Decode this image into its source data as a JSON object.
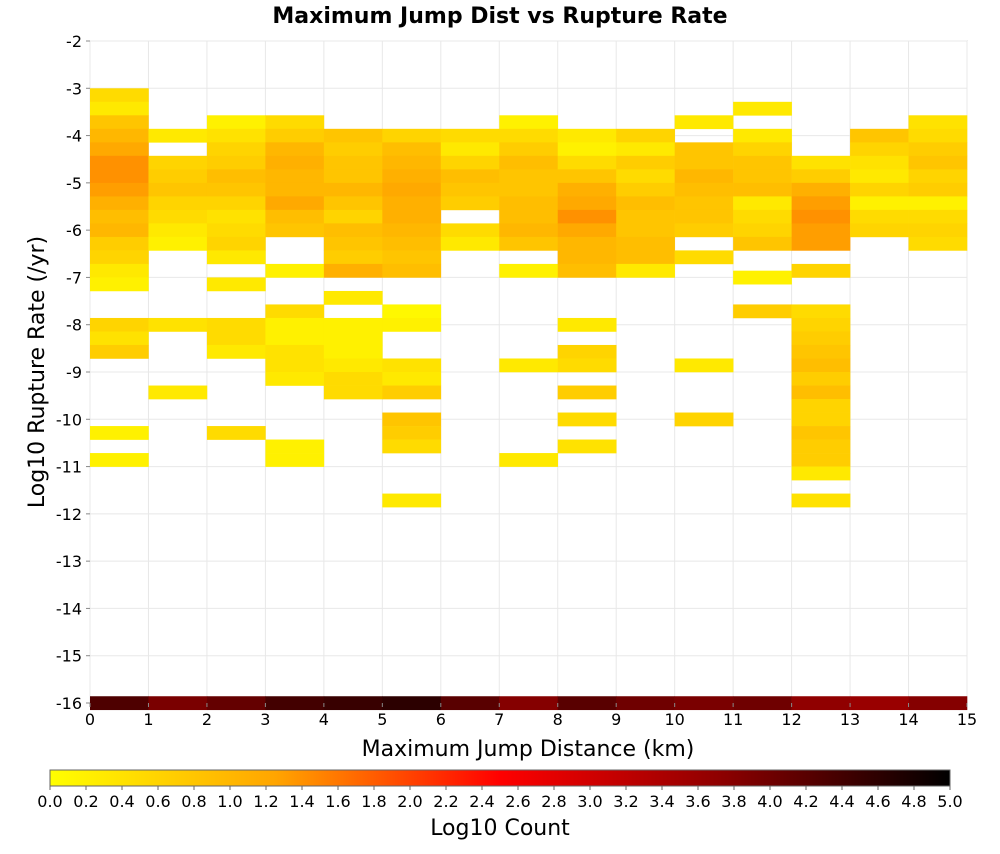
{
  "chart_data": {
    "type": "heatmap",
    "title": "Maximum Jump Dist vs Rupture Rate",
    "xlabel": "Maximum Jump Distance (km)",
    "ylabel": "Log10 Rupture Rate (/yr)",
    "xlim": [
      0,
      15
    ],
    "ylim": [
      -16,
      -2
    ],
    "x_ticks": [
      "0",
      "1",
      "2",
      "3",
      "4",
      "5",
      "6",
      "7",
      "8",
      "9",
      "10",
      "11",
      "12",
      "13",
      "14",
      "15"
    ],
    "y_ticks": [
      "-16",
      "-15",
      "-14",
      "-13",
      "-12",
      "-11",
      "-10",
      "-9",
      "-8",
      "-7",
      "-6",
      "-5",
      "-4",
      "-3",
      "-2"
    ],
    "x_bin_width": 1,
    "y_bin_width": 0.2857,
    "grid": true,
    "colorbar": {
      "label": "Log10 Count",
      "min": 0,
      "max": 5,
      "ticks": [
        "0.0",
        "0.2",
        "0.4",
        "0.6",
        "0.8",
        "1.0",
        "1.2",
        "1.4",
        "1.6",
        "1.8",
        "2.0",
        "2.2",
        "2.4",
        "2.6",
        "2.8",
        "3.0",
        "3.2",
        "3.4",
        "3.6",
        "3.8",
        "4.0",
        "4.2",
        "4.4",
        "4.6",
        "4.8",
        "5.0"
      ],
      "colors": [
        "#ffff00",
        "#ffa500",
        "#ff0000",
        "#8b0000",
        "#000000"
      ]
    },
    "columns": [
      {
        "x": 0,
        "cells": [
          [
            -3.143,
            0.5
          ],
          [
            -3.429,
            0.3
          ],
          [
            -3.714,
            0.8
          ],
          [
            -4.0,
            1.0
          ],
          [
            -4.286,
            1.2
          ],
          [
            -4.571,
            1.4
          ],
          [
            -4.857,
            1.4
          ],
          [
            -5.143,
            1.3
          ],
          [
            -5.429,
            1.1
          ],
          [
            -5.714,
            0.9
          ],
          [
            -6.0,
            1.0
          ],
          [
            -6.286,
            0.7
          ],
          [
            -6.571,
            0.6
          ],
          [
            -6.857,
            0.3
          ],
          [
            -7.143,
            0.2
          ],
          [
            -8.0,
            0.6
          ],
          [
            -8.286,
            0.4
          ],
          [
            -8.571,
            0.7
          ],
          [
            -10.286,
            0.2
          ],
          [
            -10.857,
            0.2
          ],
          [
            -16.0,
            4.3
          ]
        ]
      },
      {
        "x": 1,
        "cells": [
          [
            -4.0,
            0.3
          ],
          [
            -4.571,
            0.6
          ],
          [
            -4.857,
            0.7
          ],
          [
            -5.143,
            0.8
          ],
          [
            -5.429,
            0.6
          ],
          [
            -5.714,
            0.5
          ],
          [
            -6.0,
            0.3
          ],
          [
            -6.286,
            0.2
          ],
          [
            -8.0,
            0.4
          ],
          [
            -9.429,
            0.3
          ],
          [
            -16.0,
            3.9
          ]
        ]
      },
      {
        "x": 2,
        "cells": [
          [
            -3.714,
            0.2
          ],
          [
            -4.0,
            0.4
          ],
          [
            -4.286,
            0.6
          ],
          [
            -4.571,
            0.7
          ],
          [
            -4.857,
            0.9
          ],
          [
            -5.143,
            0.8
          ],
          [
            -5.429,
            0.6
          ],
          [
            -5.714,
            0.4
          ],
          [
            -6.0,
            0.5
          ],
          [
            -6.286,
            0.6
          ],
          [
            -6.571,
            0.3
          ],
          [
            -7.143,
            0.3
          ],
          [
            -8.0,
            0.5
          ],
          [
            -8.286,
            0.5
          ],
          [
            -8.571,
            0.3
          ],
          [
            -10.286,
            0.5
          ],
          [
            -16.0,
            4.1
          ]
        ]
      },
      {
        "x": 3,
        "cells": [
          [
            -3.714,
            0.5
          ],
          [
            -4.0,
            0.7
          ],
          [
            -4.286,
            1.0
          ],
          [
            -4.571,
            1.1
          ],
          [
            -4.857,
            1.0
          ],
          [
            -5.143,
            1.0
          ],
          [
            -5.429,
            1.2
          ],
          [
            -5.714,
            0.9
          ],
          [
            -6.0,
            0.8
          ],
          [
            -6.857,
            0.2
          ],
          [
            -7.714,
            0.5
          ],
          [
            -8.0,
            0.2
          ],
          [
            -8.286,
            0.2
          ],
          [
            -8.571,
            0.4
          ],
          [
            -8.857,
            0.4
          ],
          [
            -9.143,
            0.3
          ],
          [
            -10.571,
            0.2
          ],
          [
            -10.857,
            0.2
          ],
          [
            -16.0,
            4.4
          ]
        ]
      },
      {
        "x": 4,
        "cells": [
          [
            -4.0,
            0.8
          ],
          [
            -4.286,
            0.7
          ],
          [
            -4.571,
            0.8
          ],
          [
            -4.857,
            0.8
          ],
          [
            -5.143,
            1.0
          ],
          [
            -5.429,
            0.8
          ],
          [
            -5.714,
            0.6
          ],
          [
            -6.0,
            0.9
          ],
          [
            -6.286,
            0.8
          ],
          [
            -6.571,
            0.7
          ],
          [
            -6.857,
            1.1
          ],
          [
            -7.429,
            0.3
          ],
          [
            -8.0,
            0.2
          ],
          [
            -8.286,
            0.2
          ],
          [
            -8.571,
            0.2
          ],
          [
            -8.857,
            0.3
          ],
          [
            -9.143,
            0.5
          ],
          [
            -9.429,
            0.5
          ],
          [
            -16.0,
            4.5
          ]
        ]
      },
      {
        "x": 5,
        "cells": [
          [
            -4.0,
            0.6
          ],
          [
            -4.286,
            0.9
          ],
          [
            -4.571,
            1.0
          ],
          [
            -4.857,
            1.1
          ],
          [
            -5.143,
            1.2
          ],
          [
            -5.429,
            1.1
          ],
          [
            -5.714,
            1.1
          ],
          [
            -6.0,
            1.0
          ],
          [
            -6.286,
            0.9
          ],
          [
            -6.571,
            0.8
          ],
          [
            -6.857,
            0.9
          ],
          [
            -7.714,
            0.1
          ],
          [
            -8.0,
            0.2
          ],
          [
            -8.857,
            0.4
          ],
          [
            -9.143,
            0.3
          ],
          [
            -9.429,
            0.7
          ],
          [
            -10.0,
            0.8
          ],
          [
            -10.286,
            0.7
          ],
          [
            -10.571,
            0.5
          ],
          [
            -11.714,
            0.3
          ],
          [
            -16.0,
            4.6
          ]
        ]
      },
      {
        "x": 6,
        "cells": [
          [
            -4.0,
            0.5
          ],
          [
            -4.286,
            0.3
          ],
          [
            -4.571,
            0.6
          ],
          [
            -4.857,
            0.9
          ],
          [
            -5.143,
            0.8
          ],
          [
            -5.429,
            0.7
          ],
          [
            -6.0,
            0.5
          ],
          [
            -6.286,
            0.3
          ],
          [
            -16.0,
            4.2
          ]
        ]
      },
      {
        "x": 7,
        "cells": [
          [
            -3.714,
            0.2
          ],
          [
            -4.0,
            0.5
          ],
          [
            -4.286,
            0.7
          ],
          [
            -4.571,
            0.9
          ],
          [
            -4.857,
            0.8
          ],
          [
            -5.143,
            0.8
          ],
          [
            -5.429,
            0.9
          ],
          [
            -5.714,
            0.9
          ],
          [
            -6.0,
            1.0
          ],
          [
            -6.286,
            0.8
          ],
          [
            -6.857,
            0.2
          ],
          [
            -8.857,
            0.3
          ],
          [
            -10.857,
            0.3
          ],
          [
            -16.0,
            3.8
          ]
        ]
      },
      {
        "x": 8,
        "cells": [
          [
            -4.0,
            0.3
          ],
          [
            -4.286,
            0.2
          ],
          [
            -4.571,
            0.5
          ],
          [
            -4.857,
            0.8
          ],
          [
            -5.143,
            1.1
          ],
          [
            -5.429,
            1.2
          ],
          [
            -5.714,
            1.4
          ],
          [
            -6.0,
            1.2
          ],
          [
            -6.286,
            1.0
          ],
          [
            -6.571,
            1.0
          ],
          [
            -6.857,
            0.9
          ],
          [
            -8.0,
            0.3
          ],
          [
            -8.571,
            0.6
          ],
          [
            -8.857,
            0.5
          ],
          [
            -9.429,
            0.7
          ],
          [
            -10.0,
            0.5
          ],
          [
            -10.571,
            0.4
          ],
          [
            -16.0,
            4.2
          ]
        ]
      },
      {
        "x": 9,
        "cells": [
          [
            -4.0,
            0.6
          ],
          [
            -4.286,
            0.3
          ],
          [
            -4.571,
            0.7
          ],
          [
            -4.857,
            0.5
          ],
          [
            -5.143,
            0.7
          ],
          [
            -5.429,
            0.9
          ],
          [
            -5.714,
            0.8
          ],
          [
            -6.0,
            0.8
          ],
          [
            -6.286,
            0.9
          ],
          [
            -6.571,
            0.9
          ],
          [
            -6.857,
            0.3
          ],
          [
            -16.0,
            4.0
          ]
        ]
      },
      {
        "x": 10,
        "cells": [
          [
            -3.714,
            0.3
          ],
          [
            -4.286,
            0.8
          ],
          [
            -4.571,
            0.8
          ],
          [
            -4.857,
            1.0
          ],
          [
            -5.143,
            0.9
          ],
          [
            -5.429,
            0.8
          ],
          [
            -5.714,
            0.8
          ],
          [
            -6.0,
            0.7
          ],
          [
            -6.571,
            0.5
          ],
          [
            -8.857,
            0.3
          ],
          [
            -10.0,
            0.6
          ],
          [
            -16.0,
            3.9
          ]
        ]
      },
      {
        "x": 11,
        "cells": [
          [
            -3.429,
            0.3
          ],
          [
            -4.0,
            0.3
          ],
          [
            -4.286,
            0.6
          ],
          [
            -4.571,
            0.8
          ],
          [
            -4.857,
            0.8
          ],
          [
            -5.143,
            0.9
          ],
          [
            -5.429,
            0.3
          ],
          [
            -5.714,
            0.5
          ],
          [
            -6.0,
            0.6
          ],
          [
            -6.286,
            0.8
          ],
          [
            -7.0,
            0.2
          ],
          [
            -7.714,
            0.7
          ],
          [
            -16.0,
            4.0
          ]
        ]
      },
      {
        "x": 12,
        "cells": [
          [
            -4.571,
            0.4
          ],
          [
            -4.857,
            0.7
          ],
          [
            -5.143,
            1.1
          ],
          [
            -5.429,
            1.3
          ],
          [
            -5.714,
            1.4
          ],
          [
            -6.0,
            1.3
          ],
          [
            -6.286,
            1.3
          ],
          [
            -6.857,
            0.6
          ],
          [
            -7.714,
            0.5
          ],
          [
            -8.0,
            0.6
          ],
          [
            -8.286,
            0.7
          ],
          [
            -8.571,
            0.8
          ],
          [
            -8.857,
            0.9
          ],
          [
            -9.143,
            0.7
          ],
          [
            -9.429,
            0.9
          ],
          [
            -9.714,
            0.6
          ],
          [
            -10.0,
            0.6
          ],
          [
            -10.286,
            0.8
          ],
          [
            -10.571,
            0.7
          ],
          [
            -10.857,
            0.7
          ],
          [
            -11.143,
            0.3
          ],
          [
            -11.714,
            0.4
          ],
          [
            -16.0,
            3.7
          ]
        ]
      },
      {
        "x": 13,
        "cells": [
          [
            -4.0,
            0.8
          ],
          [
            -4.286,
            0.6
          ],
          [
            -4.571,
            0.4
          ],
          [
            -4.857,
            0.3
          ],
          [
            -5.143,
            0.6
          ],
          [
            -5.429,
            0.2
          ],
          [
            -5.714,
            0.5
          ],
          [
            -6.0,
            0.6
          ],
          [
            -16.0,
            3.6
          ]
        ]
      },
      {
        "x": 14,
        "cells": [
          [
            -3.714,
            0.4
          ],
          [
            -4.0,
            0.5
          ],
          [
            -4.286,
            0.7
          ],
          [
            -4.571,
            0.8
          ],
          [
            -4.857,
            0.6
          ],
          [
            -5.143,
            0.7
          ],
          [
            -5.429,
            0.2
          ],
          [
            -5.714,
            0.5
          ],
          [
            -6.0,
            0.6
          ],
          [
            -6.286,
            0.5
          ],
          [
            -16.0,
            3.8
          ]
        ]
      }
    ]
  }
}
